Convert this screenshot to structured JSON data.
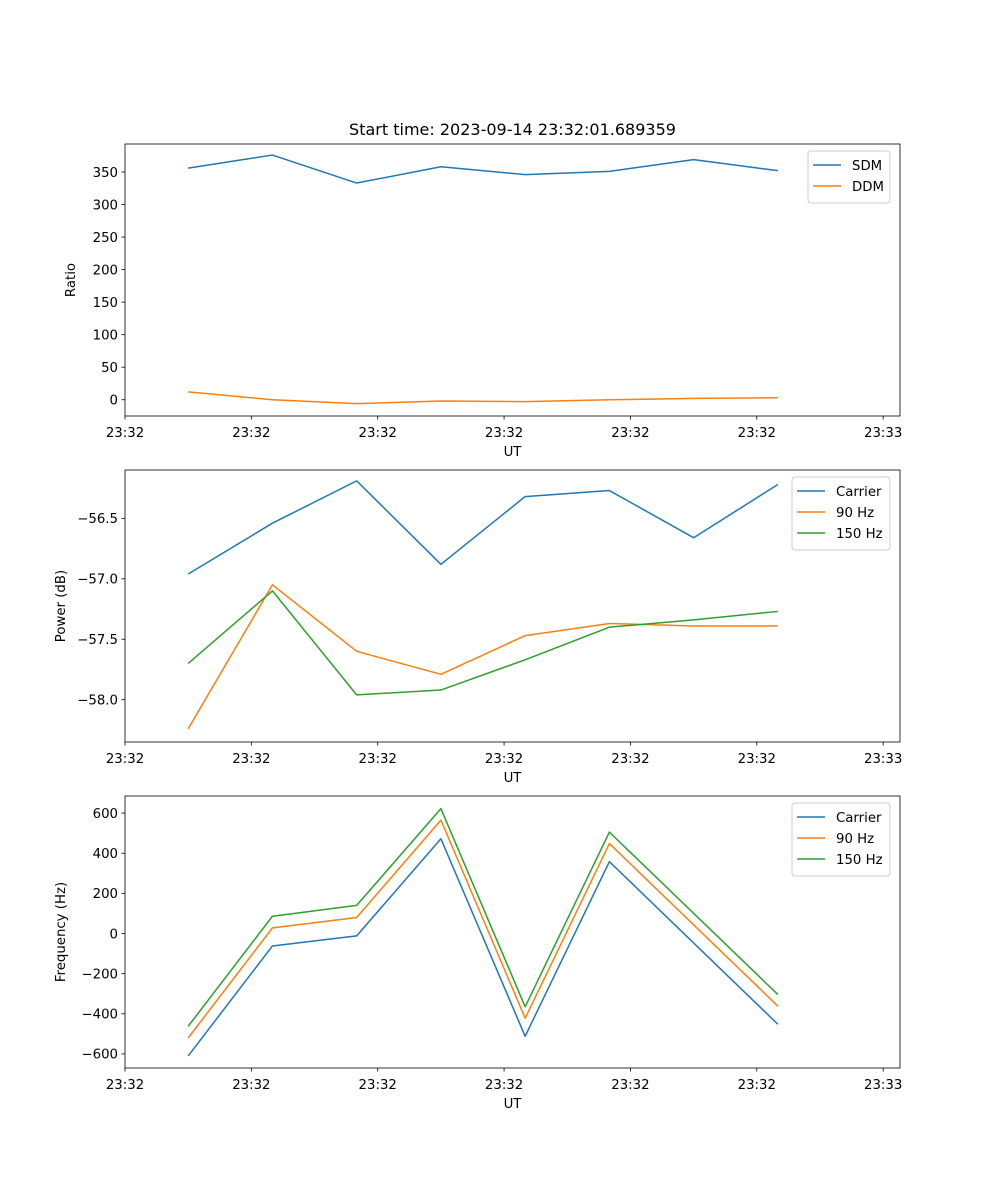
{
  "figure_title": "Start time: 2023-09-14 23:32:01.689359",
  "colors": {
    "blue": "#1f77b4",
    "orange": "#ff7f0e",
    "green": "#2ca02c",
    "axis": "#000000",
    "legend_border": "#cccccc"
  },
  "chart_data": [
    {
      "type": "line",
      "title": "Start time: 2023-09-14 23:32:01.689359",
      "xlabel": "UT",
      "ylabel": "Ratio",
      "x_index": [
        0,
        1,
        2,
        3,
        4,
        5,
        6,
        7
      ],
      "xlim": [
        -0.75,
        8.45
      ],
      "x_ticks": [
        -0.75,
        0.75,
        2.25,
        3.75,
        5.25,
        6.75,
        8.25
      ],
      "x_tick_labels": [
        "23:32",
        "23:32",
        "23:32",
        "23:32",
        "23:32",
        "23:32",
        "23:33"
      ],
      "ylim": [
        -25,
        393
      ],
      "y_ticks": [
        0,
        50,
        100,
        150,
        200,
        250,
        300,
        350
      ],
      "y_tick_labels": [
        "0",
        "50",
        "100",
        "150",
        "200",
        "250",
        "300",
        "350"
      ],
      "legend_position": "upper right",
      "series": [
        {
          "name": "SDM",
          "color_key": "blue",
          "values": [
            356,
            376,
            333,
            358,
            346,
            351,
            369,
            352
          ]
        },
        {
          "name": "DDM",
          "color_key": "orange",
          "values": [
            12,
            0,
            -6,
            -2,
            -3,
            0,
            2,
            3
          ]
        }
      ]
    },
    {
      "type": "line",
      "title": "",
      "xlabel": "UT",
      "ylabel": "Power (dB)",
      "x_index": [
        0,
        1,
        2,
        3,
        4,
        5,
        6,
        7
      ],
      "xlim": [
        -0.75,
        8.45
      ],
      "x_ticks": [
        -0.75,
        0.75,
        2.25,
        3.75,
        5.25,
        6.75,
        8.25
      ],
      "x_tick_labels": [
        "23:32",
        "23:32",
        "23:32",
        "23:32",
        "23:32",
        "23:32",
        "23:33"
      ],
      "ylim": [
        -58.35,
        -56.1
      ],
      "y_ticks": [
        -58.0,
        -57.5,
        -57.0,
        -56.5
      ],
      "y_tick_labels": [
        "−58.0",
        "−57.5",
        "−57.0",
        "−56.5"
      ],
      "legend_position": "upper right",
      "series": [
        {
          "name": "Carrier",
          "color_key": "blue",
          "values": [
            -56.96,
            -56.54,
            -56.19,
            -56.88,
            -56.32,
            -56.27,
            -56.66,
            -56.22
          ]
        },
        {
          "name": "90 Hz",
          "color_key": "orange",
          "values": [
            -58.24,
            -57.05,
            -57.6,
            -57.79,
            -57.47,
            -57.37,
            -57.39,
            -57.39
          ]
        },
        {
          "name": "150 Hz",
          "color_key": "green",
          "values": [
            -57.7,
            -57.1,
            -57.96,
            -57.92,
            -57.67,
            -57.4,
            -57.34,
            -57.27
          ]
        }
      ]
    },
    {
      "type": "line",
      "title": "",
      "xlabel": "UT",
      "ylabel": "Frequency (Hz)",
      "x_index": [
        0,
        1,
        2,
        3,
        4,
        5,
        6,
        7
      ],
      "xlim": [
        -0.75,
        8.45
      ],
      "x_ticks": [
        -0.75,
        0.75,
        2.25,
        3.75,
        5.25,
        6.75,
        8.25
      ],
      "x_tick_labels": [
        "23:32",
        "23:32",
        "23:32",
        "23:32",
        "23:32",
        "23:32",
        "23:33"
      ],
      "ylim": [
        -670,
        685
      ],
      "y_ticks": [
        -600,
        -400,
        -200,
        0,
        200,
        400,
        600
      ],
      "y_tick_labels": [
        "−600",
        "−400",
        "−200",
        "0",
        "200",
        "400",
        "600"
      ],
      "legend_position": "upper right",
      "series": [
        {
          "name": "Carrier",
          "color_key": "blue",
          "values": [
            -610,
            -62,
            -12,
            472,
            -512,
            358,
            null,
            -452
          ]
        },
        {
          "name": "90 Hz",
          "color_key": "orange",
          "values": [
            -520,
            28,
            80,
            565,
            -422,
            448,
            null,
            -362
          ]
        },
        {
          "name": "150 Hz",
          "color_key": "green",
          "values": [
            -462,
            86,
            140,
            622,
            -365,
            505,
            null,
            -304
          ]
        }
      ]
    }
  ]
}
